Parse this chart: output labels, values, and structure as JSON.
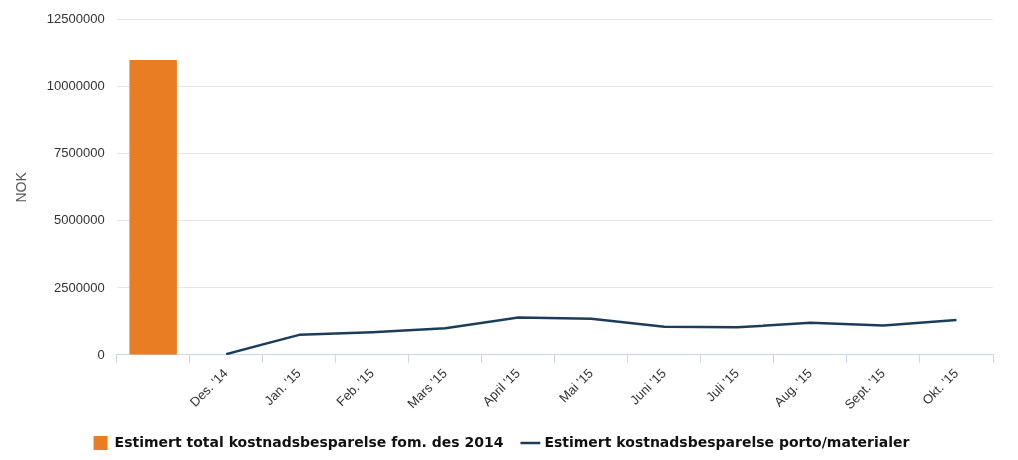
{
  "chart_data": {
    "type": "bar",
    "ylabel": "NOK",
    "categories": [
      null,
      "Des. '14",
      "Jan. '15",
      "Feb. '15",
      "Mars '15",
      "April '15",
      "Mai '15",
      "Juni '15",
      "Juli '15",
      "Aug. '15",
      "Sept. '15",
      "Okt. '15"
    ],
    "series": [
      {
        "name": "Estimert total kostnadsbesparelse fom. des 2014",
        "color": "#e87d23",
        "values": [
          11000000,
          null,
          null,
          null,
          null,
          null,
          null,
          null,
          null,
          null,
          null,
          null
        ]
      },
      {
        "name": "Estimert kostnadsbesparelse porto/materialer",
        "type": "line",
        "color": "#1c3d59",
        "values": [
          null,
          30000,
          750000,
          850000,
          1000000,
          1400000,
          1350000,
          1050000,
          1030000,
          1200000,
          1100000,
          1300000
        ]
      }
    ],
    "ylim": [
      0,
      12500000
    ],
    "yticks": [
      0,
      2500000,
      5000000,
      7500000,
      10000000,
      12500000
    ],
    "grid": "y",
    "legend": "bottom",
    "marker": "none"
  }
}
